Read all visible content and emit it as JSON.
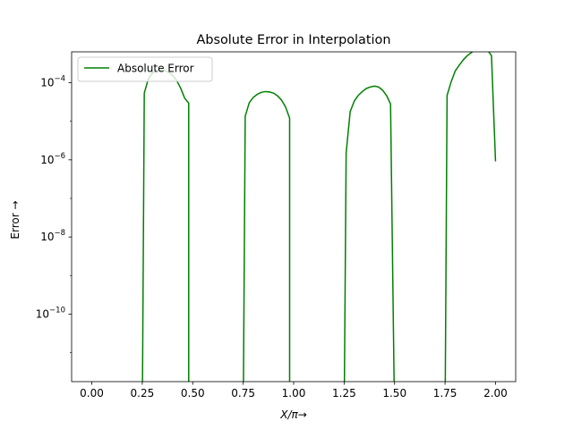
{
  "chart_data": {
    "type": "line",
    "title": "Absolute Error in Interpolation",
    "xlabel": "X/π→",
    "ylabel": "Error →",
    "yscale": "log",
    "xlim": [
      -0.1,
      2.1
    ],
    "ylim_log10": [
      -11.75,
      -3.2
    ],
    "x_ticks": [
      0.0,
      0.25,
      0.5,
      0.75,
      1.0,
      1.25,
      1.5,
      1.75,
      2.0
    ],
    "x_tick_labels": [
      "0.00",
      "0.25",
      "0.50",
      "0.75",
      "1.00",
      "1.25",
      "1.50",
      "1.75",
      "2.00"
    ],
    "y_ticks_log10": [
      -10,
      -8,
      -6,
      -4
    ],
    "y_tick_labels": [
      {
        "base": "10",
        "exp": "−10"
      },
      {
        "base": "10",
        "exp": "−8"
      },
      {
        "base": "10",
        "exp": "−6"
      },
      {
        "base": "10",
        "exp": "−4"
      }
    ],
    "grid": false,
    "legend_position": "top-left",
    "series": [
      {
        "name": "Absolute Error",
        "color": "#008000",
        "segments": [
          {
            "x": [
              0.25,
              0.26,
              0.28,
              0.3,
              0.32,
              0.34,
              0.36,
              0.38,
              0.4,
              0.42,
              0.44,
              0.46,
              0.48,
              0.48,
              0.49
            ],
            "log10_y": [
              -14,
              -4.27,
              -3.9,
              -3.75,
              -3.69,
              -3.67,
              -3.68,
              -3.73,
              -3.81,
              -3.94,
              -4.14,
              -4.4,
              -4.53,
              -14,
              -14
            ]
          },
          {
            "x": [
              0.75,
              0.76,
              0.78,
              0.8,
              0.82,
              0.84,
              0.86,
              0.88,
              0.9,
              0.92,
              0.94,
              0.96,
              0.98,
              0.98,
              0.99
            ],
            "log10_y": [
              -14,
              -4.87,
              -4.52,
              -4.38,
              -4.3,
              -4.25,
              -4.23,
              -4.24,
              -4.27,
              -4.34,
              -4.45,
              -4.63,
              -4.92,
              -14,
              -14
            ]
          },
          {
            "x": [
              1.25,
              1.26,
              1.28,
              1.3,
              1.32,
              1.34,
              1.36,
              1.38,
              1.4,
              1.42,
              1.44,
              1.46,
              1.48,
              1.5
            ],
            "log10_y": [
              -14,
              -5.82,
              -4.75,
              -4.48,
              -4.33,
              -4.23,
              -4.15,
              -4.11,
              -4.09,
              -4.11,
              -4.19,
              -4.33,
              -4.55,
              -14
            ]
          },
          {
            "x": [
              1.75,
              1.76,
              1.78,
              1.8,
              1.82,
              1.84,
              1.86,
              1.88,
              1.9,
              1.92,
              1.94,
              1.96,
              1.98,
              2.0
            ],
            "log10_y": [
              -14,
              -4.33,
              -3.98,
              -3.7,
              -3.55,
              -3.41,
              -3.3,
              -3.22,
              -3.14,
              -3.08,
              -3.07,
              -3.15,
              -3.3,
              -6.04
            ]
          }
        ]
      }
    ]
  }
}
